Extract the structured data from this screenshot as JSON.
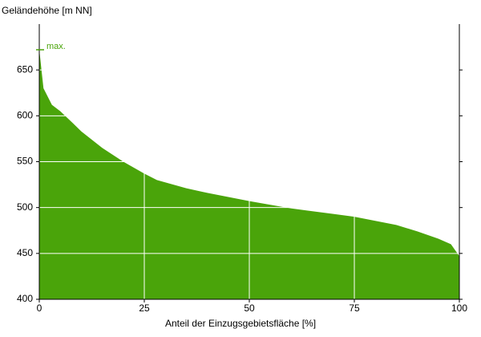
{
  "chart_data": {
    "type": "area",
    "x_label": "Anteil der Einzugsgebietsfläche [%]",
    "y_label": "Geländehöhe [m NN]",
    "x": [
      0,
      1,
      3,
      5,
      8,
      10,
      15,
      20,
      25,
      28,
      35,
      40,
      50,
      60,
      70,
      75,
      85,
      90,
      95,
      98,
      100
    ],
    "values": [
      672,
      630,
      612,
      605,
      592,
      583,
      565,
      550,
      537,
      530,
      521,
      516,
      507,
      499,
      493,
      490,
      481,
      474,
      466,
      460,
      447
    ],
    "color": "#4aa40a",
    "max_label": "max.",
    "max_value": 672,
    "xlim": [
      0,
      100
    ],
    "ylim": [
      400,
      700
    ],
    "xticks": [
      0,
      25,
      50,
      75,
      100
    ],
    "yticks": [
      400,
      450,
      500,
      550,
      600,
      650
    ],
    "grid": true
  }
}
